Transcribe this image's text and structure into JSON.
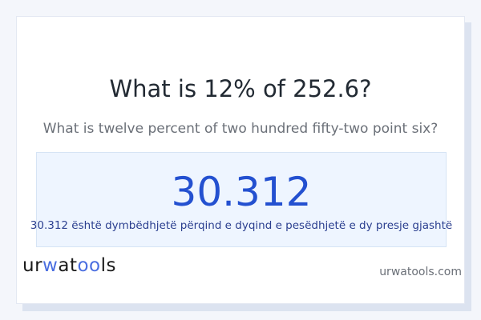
{
  "question": {
    "title": "What is 12% of 252.6?",
    "subtitle": "What is twelve percent of two hundred fifty-two point six?"
  },
  "result": {
    "value": "30.312",
    "words": "30.312 është dymbëdhjetë përqind e dyqind e pesëdhjetë e dy presje gjashtë"
  },
  "branding": {
    "logo_text": "urwatools",
    "site": "urwatools.com",
    "accent_color": "#4a6ee0"
  }
}
